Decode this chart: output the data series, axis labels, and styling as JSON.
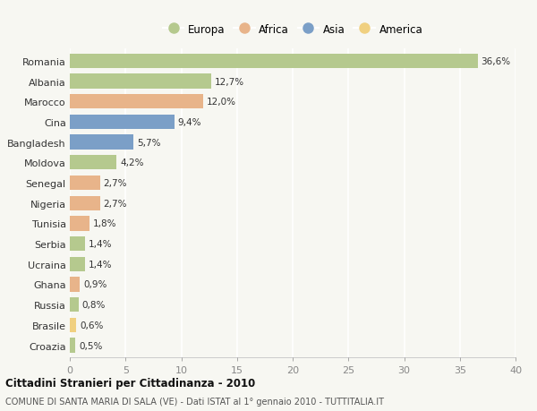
{
  "countries": [
    "Romania",
    "Albania",
    "Marocco",
    "Cina",
    "Bangladesh",
    "Moldova",
    "Senegal",
    "Nigeria",
    "Tunisia",
    "Serbia",
    "Ucraina",
    "Ghana",
    "Russia",
    "Brasile",
    "Croazia"
  ],
  "values": [
    36.6,
    12.7,
    12.0,
    9.4,
    5.7,
    4.2,
    2.7,
    2.7,
    1.8,
    1.4,
    1.4,
    0.9,
    0.8,
    0.6,
    0.5
  ],
  "labels": [
    "36,6%",
    "12,7%",
    "12,0%",
    "9,4%",
    "5,7%",
    "4,2%",
    "2,7%",
    "2,7%",
    "1,8%",
    "1,4%",
    "1,4%",
    "0,9%",
    "0,8%",
    "0,6%",
    "0,5%"
  ],
  "continents": [
    "Europa",
    "Europa",
    "Africa",
    "Asia",
    "Asia",
    "Europa",
    "Africa",
    "Africa",
    "Africa",
    "Europa",
    "Europa",
    "Africa",
    "Europa",
    "America",
    "Europa"
  ],
  "colors": {
    "Europa": "#b5c98e",
    "Africa": "#e8b48a",
    "Asia": "#7b9fc7",
    "America": "#f0d080"
  },
  "legend_order": [
    "Europa",
    "Africa",
    "Asia",
    "America"
  ],
  "title": "Cittadini Stranieri per Cittadinanza - 2010",
  "subtitle": "COMUNE DI SANTA MARIA DI SALA (VE) - Dati ISTAT al 1° gennaio 2010 - TUTTITALIA.IT",
  "xlim": [
    0,
    40
  ],
  "xticks": [
    0,
    5,
    10,
    15,
    20,
    25,
    30,
    35,
    40
  ],
  "background_color": "#f7f7f2",
  "grid_color": "#ffffff",
  "bar_height": 0.72
}
